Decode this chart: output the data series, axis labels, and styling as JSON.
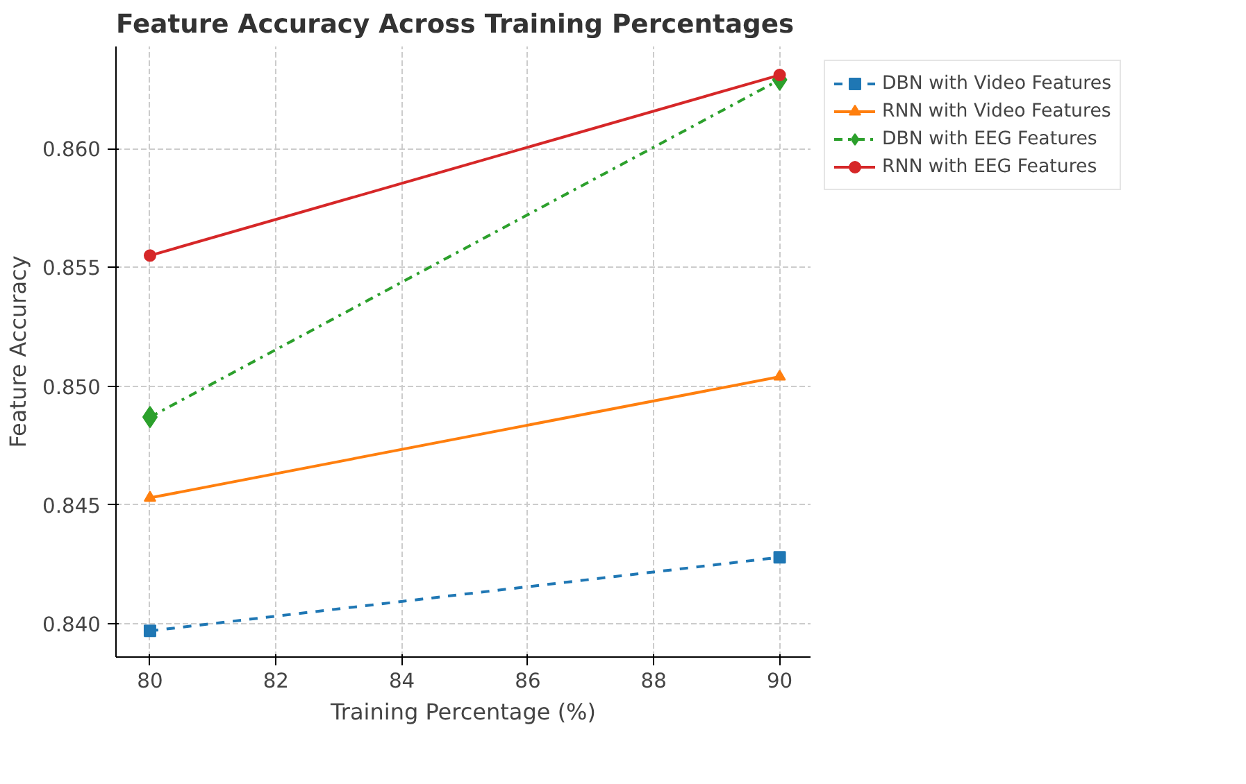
{
  "chart_data": {
    "type": "line",
    "title": "Feature Accuracy Across Training Percentages",
    "xlabel": "Training Percentage (%)",
    "ylabel": "Feature Accuracy",
    "x": [
      80,
      90
    ],
    "series": [
      {
        "name": "DBN with Video Features",
        "color": "#1f77b4",
        "values": [
          0.8397,
          0.8428
        ],
        "marker": "square",
        "line_style": "dashed"
      },
      {
        "name": "RNN with Video Features",
        "color": "#ff7f0e",
        "values": [
          0.8453,
          0.8504
        ],
        "marker": "triangle",
        "line_style": "solid"
      },
      {
        "name": "DBN with EEG Features",
        "color": "#2ca02c",
        "values": [
          0.8487,
          0.8629
        ],
        "marker": "diamond",
        "line_style": "dashdot"
      },
      {
        "name": "RNN with EEG Features",
        "color": "#d62728",
        "values": [
          0.8555,
          0.8631
        ],
        "marker": "circle",
        "line_style": "solid"
      }
    ],
    "xlim": [
      79.46,
      90.49
    ],
    "ylim": [
      0.8386,
      0.8643
    ],
    "xticks": [
      80,
      82,
      84,
      86,
      88,
      90
    ],
    "yticks": [
      {
        "value": 0.84,
        "label": "0.840"
      },
      {
        "value": 0.845,
        "label": "0.845"
      },
      {
        "value": 0.85,
        "label": "0.850"
      },
      {
        "value": 0.855,
        "label": "0.855"
      },
      {
        "value": 0.86,
        "label": "0.860"
      }
    ],
    "grid": true,
    "legend": "top right"
  }
}
